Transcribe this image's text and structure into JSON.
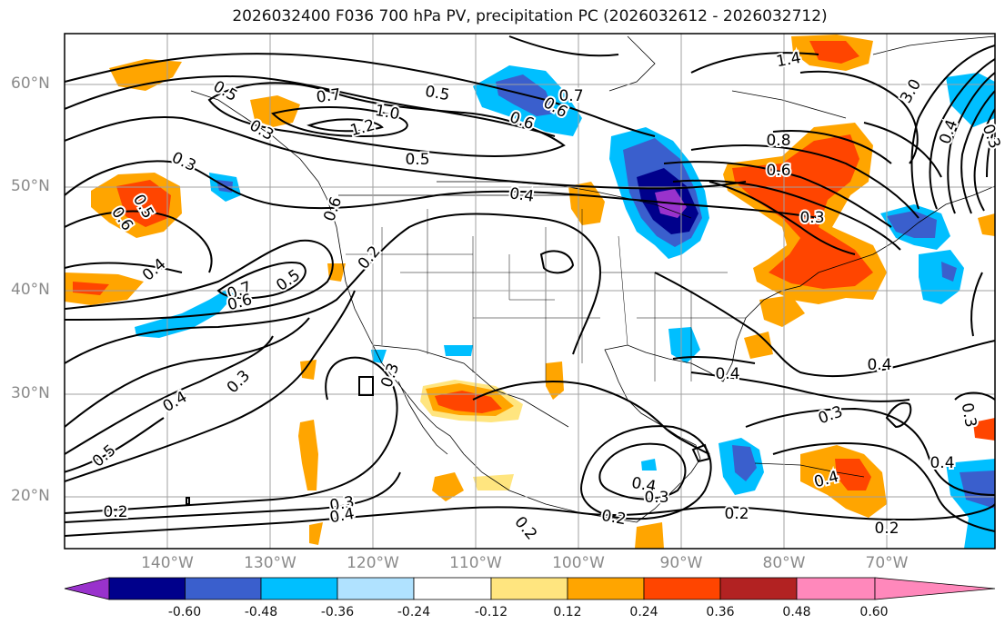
{
  "title": "2026032400 F036 700 hPa PV, precipitation PC (2026032612 - 2026032712)",
  "latitude_labels": [
    "60°N",
    "50°N",
    "40°N",
    "30°N",
    "20°N"
  ],
  "longitude_labels": [
    "140°W",
    "130°W",
    "120°W",
    "110°W",
    "100°W",
    "90°W",
    "80°W",
    "70°W"
  ],
  "colorbar": {
    "labels": [
      "-0.60",
      "-0.48",
      "-0.36",
      "-0.24",
      "-0.12",
      "0.12",
      "0.24",
      "0.36",
      "0.48",
      "0.60"
    ],
    "colors": [
      "#9932cc",
      "#00008b",
      "#3a5fcd",
      "#00bfff",
      "#b0e2ff",
      "#ffffff",
      "#ffe57f",
      "#ffa500",
      "#ff4500",
      "#b22222",
      "#ff88bb"
    ]
  },
  "contour_labels": [
    "0.7",
    "0.5",
    "0.7",
    "0.6",
    "0.6",
    "1.0",
    "1.2",
    "1.4",
    "3.0",
    "0.8",
    "0.6",
    "0.3",
    "0.3",
    "0.5",
    "0.4",
    "0.5",
    "0.6",
    "0.4",
    "0.6",
    "0.5",
    "0.3",
    "0.2",
    "0.7",
    "0.5",
    "0.6",
    "0.4",
    "0.3",
    "0.3",
    "0.4",
    "0.5",
    "0.2",
    "0.3",
    "0.4",
    "0.4",
    "0.3",
    "0.2",
    "0.2",
    "0.2",
    "0.4",
    "0.3",
    "0.4",
    "0.4",
    "0.3",
    "0.4",
    "0.2",
    "0.3"
  ],
  "colors": {
    "grid": "#a0a0a0",
    "contour": "#000000",
    "border": "#000000"
  }
}
